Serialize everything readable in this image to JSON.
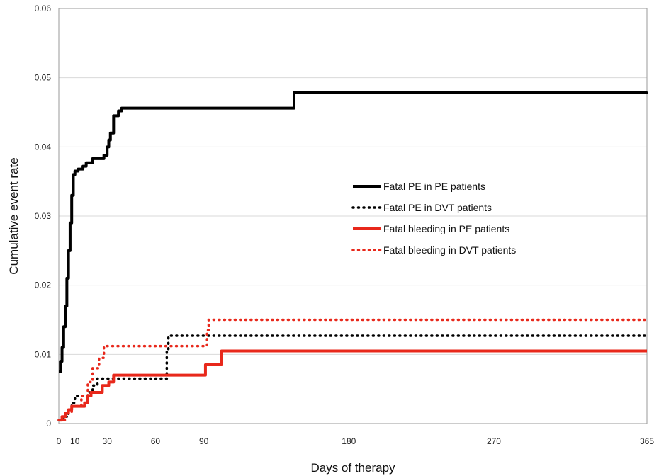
{
  "chart_data": {
    "type": "line",
    "step": true,
    "title": "",
    "xlabel": "Days of therapy",
    "ylabel": "Cumulative event rate",
    "xlim": [
      0,
      365
    ],
    "ylim": [
      0,
      0.06
    ],
    "x_ticks": [
      0,
      10,
      30,
      60,
      90,
      180,
      270,
      365
    ],
    "x_tick_labels": [
      "0",
      "10",
      "30",
      "60",
      "90",
      "180",
      "270",
      "365"
    ],
    "y_ticks": [
      0,
      0.01,
      0.02,
      0.03,
      0.04,
      0.05,
      0.06
    ],
    "y_tick_labels": [
      "0",
      "0.01",
      "0.02",
      "0.03",
      "0.04",
      "0.05",
      "0.06"
    ],
    "grid": "horizontal",
    "legend_position": "center-right",
    "series": [
      {
        "name": "Fatal PE in PE patients",
        "color": "#000000",
        "style": "solid",
        "points": [
          [
            0,
            0.0075
          ],
          [
            1,
            0.009
          ],
          [
            2,
            0.011
          ],
          [
            3,
            0.014
          ],
          [
            4,
            0.017
          ],
          [
            5,
            0.021
          ],
          [
            6,
            0.025
          ],
          [
            7,
            0.029
          ],
          [
            8,
            0.033
          ],
          [
            9,
            0.036
          ],
          [
            10,
            0.0365
          ],
          [
            12,
            0.0368
          ],
          [
            15,
            0.0372
          ],
          [
            17,
            0.0377
          ],
          [
            21,
            0.0383
          ],
          [
            28,
            0.0388
          ],
          [
            30,
            0.04
          ],
          [
            31,
            0.041
          ],
          [
            32,
            0.042
          ],
          [
            34,
            0.0445
          ],
          [
            37,
            0.0452
          ],
          [
            39,
            0.0456
          ],
          [
            146,
            0.0479
          ],
          [
            365,
            0.048
          ]
        ]
      },
      {
        "name": "Fatal PE in DVT patients",
        "color": "#000000",
        "style": "dotted",
        "points": [
          [
            0,
            0.0005
          ],
          [
            3,
            0.001
          ],
          [
            6,
            0.002
          ],
          [
            8,
            0.003
          ],
          [
            10,
            0.004
          ],
          [
            18,
            0.0045
          ],
          [
            21,
            0.0055
          ],
          [
            24,
            0.0065
          ],
          [
            67,
            0.0105
          ],
          [
            68,
            0.0127
          ],
          [
            365,
            0.0127
          ]
        ]
      },
      {
        "name": "Fatal bleeding in PE patients",
        "color": "#e8281b",
        "style": "solid",
        "points": [
          [
            0,
            0.0005
          ],
          [
            2,
            0.001
          ],
          [
            4,
            0.0015
          ],
          [
            6,
            0.002
          ],
          [
            8,
            0.0025
          ],
          [
            16,
            0.003
          ],
          [
            18,
            0.004
          ],
          [
            20,
            0.0045
          ],
          [
            27,
            0.0055
          ],
          [
            31,
            0.006
          ],
          [
            34,
            0.007
          ],
          [
            91,
            0.0085
          ],
          [
            101,
            0.0105
          ],
          [
            365,
            0.0105
          ]
        ]
      },
      {
        "name": "Fatal bleeding in DVT patients",
        "color": "#e8281b",
        "style": "dotted",
        "points": [
          [
            0,
            0.0005
          ],
          [
            4,
            0.0015
          ],
          [
            8,
            0.0025
          ],
          [
            14,
            0.004
          ],
          [
            18,
            0.006
          ],
          [
            21,
            0.008
          ],
          [
            25,
            0.0095
          ],
          [
            28,
            0.0112
          ],
          [
            92,
            0.0135
          ],
          [
            93,
            0.015
          ],
          [
            365,
            0.015
          ]
        ]
      }
    ]
  }
}
